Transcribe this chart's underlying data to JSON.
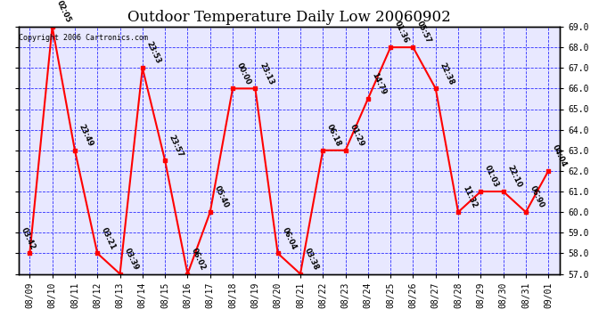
{
  "title": "Outdoor Temperature Daily Low 20060902",
  "copyright": "Copyright 2006 Cartronics.com",
  "fig_facecolor": "#ffffff",
  "plot_facecolor": "#e8e8ff",
  "line_color": "red",
  "marker_color": "red",
  "grid_color": "blue",
  "ylim": [
    57.0,
    69.0
  ],
  "yticks": [
    57.0,
    58.0,
    59.0,
    60.0,
    61.0,
    62.0,
    63.0,
    64.0,
    65.0,
    66.0,
    67.0,
    68.0,
    69.0
  ],
  "dates": [
    "08/09",
    "08/10",
    "08/11",
    "08/12",
    "08/13",
    "08/14",
    "08/15",
    "08/16",
    "08/17",
    "08/18",
    "08/19",
    "08/20",
    "08/21",
    "08/22",
    "08/23",
    "08/24",
    "08/25",
    "08/26",
    "08/27",
    "08/28",
    "08/29",
    "08/30",
    "08/31",
    "09/01"
  ],
  "values": [
    58.0,
    69.0,
    63.0,
    58.0,
    57.0,
    67.0,
    62.5,
    57.0,
    60.0,
    66.0,
    66.0,
    58.0,
    57.0,
    63.0,
    63.0,
    65.5,
    68.0,
    68.0,
    66.0,
    60.0,
    61.0,
    61.0,
    60.0,
    62.0
  ],
  "labels": [
    "03:42",
    "02:05",
    "23:49",
    "03:21",
    "03:39",
    "23:53",
    "23:57",
    "06:02",
    "05:40",
    "00:00",
    "23:13",
    "06:04",
    "03:38",
    "06:18",
    "01:29",
    "14:79",
    "01:36",
    "05:57",
    "22:38",
    "11:32",
    "01:03",
    "22:10",
    "06:90",
    "04:04"
  ],
  "title_fontsize": 12,
  "tick_fontsize": 7,
  "label_fontsize": 6,
  "figsize": [
    6.9,
    3.75
  ],
  "dpi": 100
}
